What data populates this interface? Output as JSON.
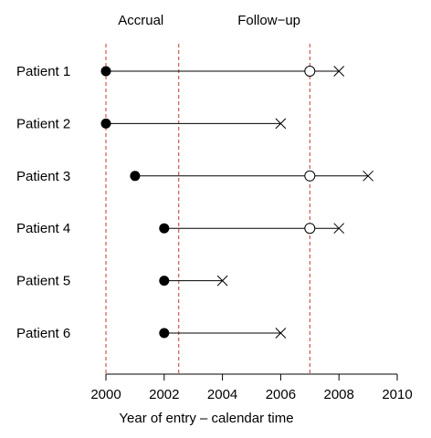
{
  "chart_data": {
    "type": "scatter",
    "title": "",
    "xlabel": "Year of entry – calendar time",
    "ylabel": "",
    "xlim": [
      2000,
      2010
    ],
    "x_ticks": [
      2000,
      2002,
      2004,
      2006,
      2008,
      2010
    ],
    "grid": false,
    "phase_annotations": [
      {
        "text": "Accrual"
      },
      {
        "text": "Follow−up"
      }
    ],
    "reference_lines": [
      {
        "x": 2000,
        "color": "#c0392b",
        "style": "dashed"
      },
      {
        "x": 2002.5,
        "color": "#c0392b",
        "style": "dashed"
      },
      {
        "x": 2007,
        "color": "#c0392b",
        "style": "dashed"
      }
    ],
    "patients": [
      {
        "label": "Patient 1",
        "entry": 2000,
        "censored_at": 2007,
        "end": 2008
      },
      {
        "label": "Patient 2",
        "entry": 2000,
        "censored_at": null,
        "end": 2006
      },
      {
        "label": "Patient 3",
        "entry": 2001,
        "censored_at": 2007,
        "end": 2009
      },
      {
        "label": "Patient 4",
        "entry": 2002,
        "censored_at": 2007,
        "end": 2008
      },
      {
        "label": "Patient 5",
        "entry": 2002,
        "censored_at": null,
        "end": 2004
      },
      {
        "label": "Patient 6",
        "entry": 2002,
        "censored_at": null,
        "end": 2006
      }
    ],
    "markers": {
      "entry": "filled-circle",
      "censored": "open-circle",
      "end": "cross"
    }
  }
}
